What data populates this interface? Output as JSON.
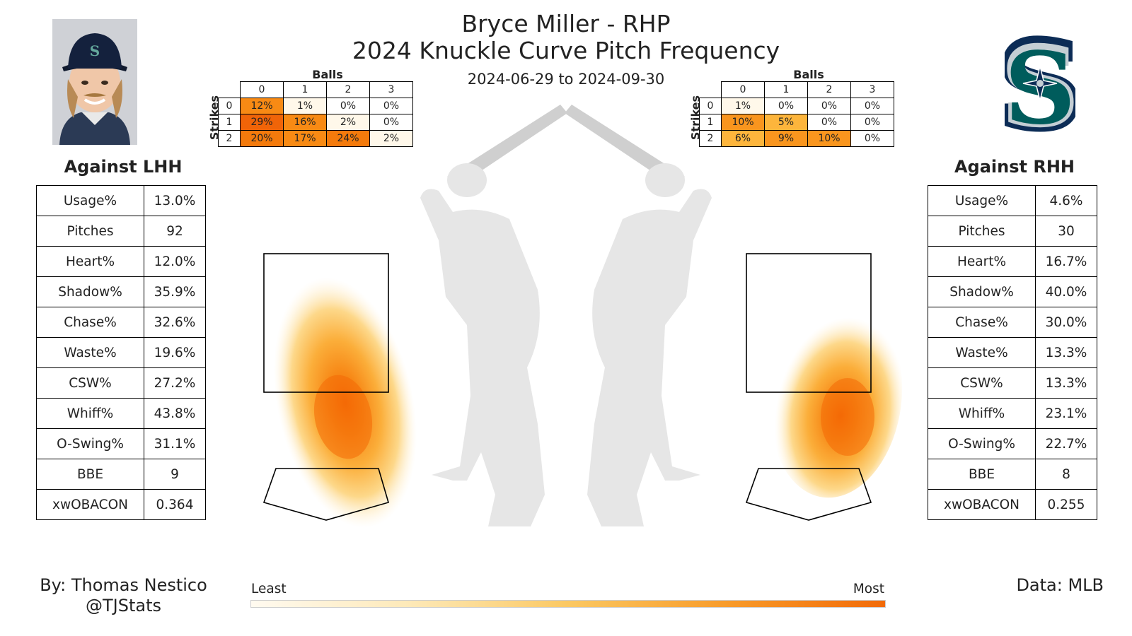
{
  "header": {
    "title": "Bryce Miller - RHP",
    "subtitle": "2024 Knuckle Curve Pitch Frequency",
    "date_range": "2024-06-29 to 2024-09-30"
  },
  "colors": {
    "low": "#fff4dc",
    "mid": "#fbb040",
    "high": "#f26a08",
    "accent": "#005c5c",
    "navy": "#0c2c56"
  },
  "lhh": {
    "title": "Against LHH",
    "stats": [
      {
        "label": "Usage%",
        "value": "13.0%"
      },
      {
        "label": "Pitches",
        "value": "92"
      },
      {
        "label": "Heart%",
        "value": "12.0%"
      },
      {
        "label": "Shadow%",
        "value": "35.9%"
      },
      {
        "label": "Chase%",
        "value": "32.6%"
      },
      {
        "label": "Waste%",
        "value": "19.6%"
      },
      {
        "label": "CSW%",
        "value": "27.2%"
      },
      {
        "label": "Whiff%",
        "value": "43.8%"
      },
      {
        "label": "O-Swing%",
        "value": "31.1%"
      },
      {
        "label": "BBE",
        "value": "9"
      },
      {
        "label": "xwOBACON",
        "value": "0.364"
      }
    ],
    "count": {
      "balls_label": "Balls",
      "strikes_label": "Strikes",
      "balls": [
        "0",
        "1",
        "2",
        "3"
      ],
      "rows": [
        {
          "strikes": "0",
          "cells": [
            "12%",
            "1%",
            "0%",
            "0%"
          ],
          "vals": [
            12,
            1,
            0,
            0
          ]
        },
        {
          "strikes": "1",
          "cells": [
            "29%",
            "16%",
            "2%",
            "0%"
          ],
          "vals": [
            29,
            16,
            2,
            0
          ]
        },
        {
          "strikes": "2",
          "cells": [
            "20%",
            "17%",
            "24%",
            "2%"
          ],
          "vals": [
            20,
            17,
            24,
            2
          ]
        }
      ]
    }
  },
  "rhh": {
    "title": "Against RHH",
    "stats": [
      {
        "label": "Usage%",
        "value": "4.6%"
      },
      {
        "label": "Pitches",
        "value": "30"
      },
      {
        "label": "Heart%",
        "value": "16.7%"
      },
      {
        "label": "Shadow%",
        "value": "40.0%"
      },
      {
        "label": "Chase%",
        "value": "30.0%"
      },
      {
        "label": "Waste%",
        "value": "13.3%"
      },
      {
        "label": "CSW%",
        "value": "13.3%"
      },
      {
        "label": "Whiff%",
        "value": "23.1%"
      },
      {
        "label": "O-Swing%",
        "value": "22.7%"
      },
      {
        "label": "BBE",
        "value": "8"
      },
      {
        "label": "xwOBACON",
        "value": "0.255"
      }
    ],
    "count": {
      "balls_label": "Balls",
      "strikes_label": "Strikes",
      "balls": [
        "0",
        "1",
        "2",
        "3"
      ],
      "rows": [
        {
          "strikes": "0",
          "cells": [
            "1%",
            "0%",
            "0%",
            "0%"
          ],
          "vals": [
            1,
            0,
            0,
            0
          ]
        },
        {
          "strikes": "1",
          "cells": [
            "10%",
            "5%",
            "0%",
            "0%"
          ],
          "vals": [
            10,
            5,
            0,
            0
          ]
        },
        {
          "strikes": "2",
          "cells": [
            "6%",
            "9%",
            "10%",
            "0%"
          ],
          "vals": [
            6,
            9,
            10,
            0
          ]
        }
      ]
    }
  },
  "legend": {
    "least": "Least",
    "most": "Most"
  },
  "footer": {
    "author": "By: Thomas Nestico",
    "handle": "@TJStats",
    "source": "Data: MLB"
  },
  "chart_data": {
    "type": "heatmap",
    "title": "2024 Knuckle Curve Pitch Frequency",
    "panels": [
      {
        "name": "Against LHH",
        "density_peak": "low and away from LHH, below the strike zone on the glove side",
        "color_scale": [
          "Least",
          "Most"
        ]
      },
      {
        "name": "Against RHH",
        "density_peak": "low and away from RHH, bottom edge of the strike zone",
        "color_scale": [
          "Least",
          "Most"
        ]
      }
    ]
  }
}
